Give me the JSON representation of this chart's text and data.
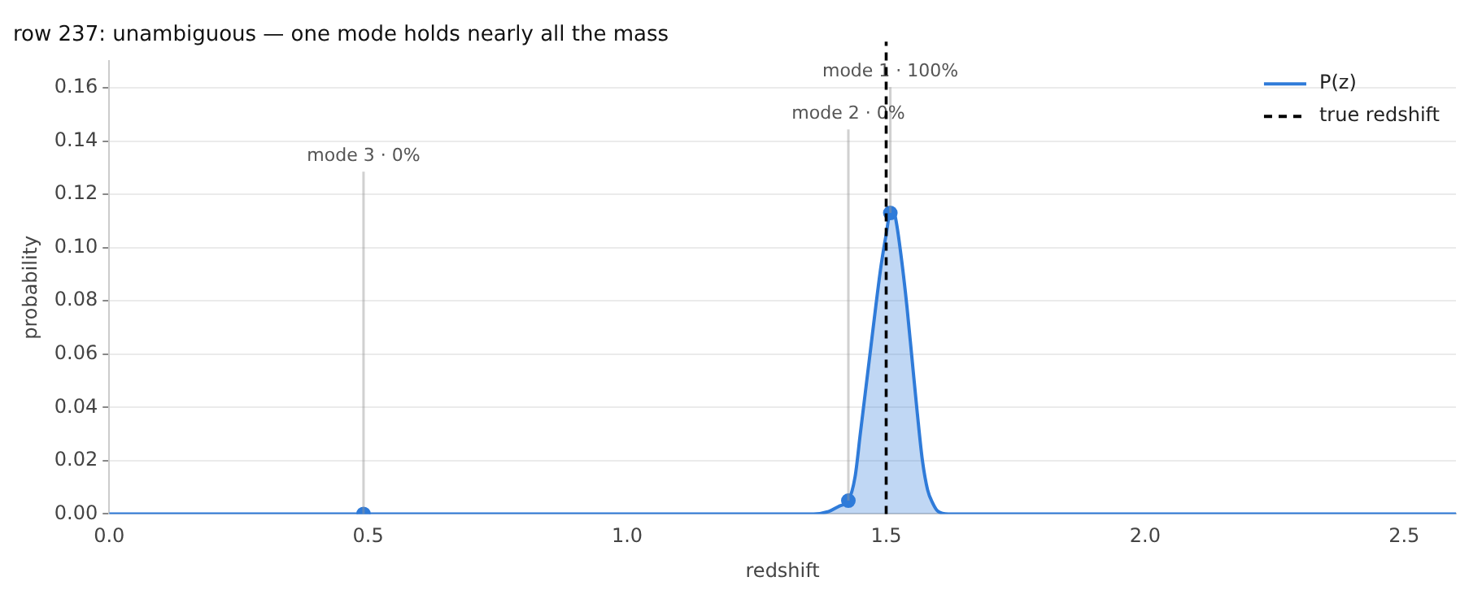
{
  "chart_data": {
    "type": "area",
    "title": "row 237: unambiguous — one mode holds nearly all the mass",
    "xlabel": "redshift",
    "ylabel": "probability",
    "xlim": [
      0,
      2.6
    ],
    "ylim": [
      0,
      0.17
    ],
    "xticks": [
      {
        "value": 0,
        "label": "0.0"
      },
      {
        "value": 0.5,
        "label": "0.5"
      },
      {
        "value": 1,
        "label": "1.0"
      },
      {
        "value": 1.5,
        "label": "1.5"
      },
      {
        "value": 2,
        "label": "2.0"
      },
      {
        "value": 2.5,
        "label": "2.5"
      }
    ],
    "yticks": [
      {
        "value": 0,
        "label": "0.00"
      },
      {
        "value": 0.02,
        "label": "0.02"
      },
      {
        "value": 0.04,
        "label": "0.04"
      },
      {
        "value": 0.06,
        "label": "0.06"
      },
      {
        "value": 0.08,
        "label": "0.08"
      },
      {
        "value": 0.1,
        "label": "0.10"
      },
      {
        "value": 0.12,
        "label": "0.12"
      },
      {
        "value": 0.14,
        "label": "0.14"
      },
      {
        "value": 0.16,
        "label": "0.16"
      }
    ],
    "grid": "y",
    "legend": "top right",
    "marker": "none",
    "line_style": "solid",
    "series": [
      {
        "name": "P(z)",
        "color": "#2f7bd9",
        "x": [
          0,
          0.5,
          1.0,
          1.36,
          1.39,
          1.41,
          1.427,
          1.44,
          1.45,
          1.46,
          1.47,
          1.48,
          1.49,
          1.5,
          1.508,
          1.515,
          1.52,
          1.53,
          1.54,
          1.55,
          1.56,
          1.57,
          1.58,
          1.59,
          1.6,
          1.62,
          1.7,
          2.0,
          2.6
        ],
        "values": [
          0,
          0,
          0,
          0,
          0.001,
          0.003,
          0.005,
          0.014,
          0.03,
          0.046,
          0.062,
          0.078,
          0.093,
          0.105,
          0.113,
          0.113,
          0.109,
          0.095,
          0.078,
          0.058,
          0.038,
          0.02,
          0.009,
          0.004,
          0.001,
          0,
          0,
          0,
          0
        ]
      },
      {
        "type": "scatter",
        "marker": "circle",
        "color": "#2f7bd9",
        "x": [
          1.508,
          1.427,
          0.491
        ],
        "values": [
          0.113,
          0.005,
          0
        ]
      }
    ],
    "ref_lines": [
      {
        "axis": "x",
        "value": 1.5,
        "label": "true redshift",
        "color": "#000000",
        "line_style": "dashed"
      }
    ],
    "annotations": [
      {
        "text": "mode 1 · 100%",
        "x": 1.508,
        "y": 0.113
      },
      {
        "text": "mode 2 · 0%",
        "x": 1.427,
        "y": 0.005
      },
      {
        "text": "mode 3 · 0%",
        "x": 0.491,
        "y": 0
      }
    ]
  }
}
